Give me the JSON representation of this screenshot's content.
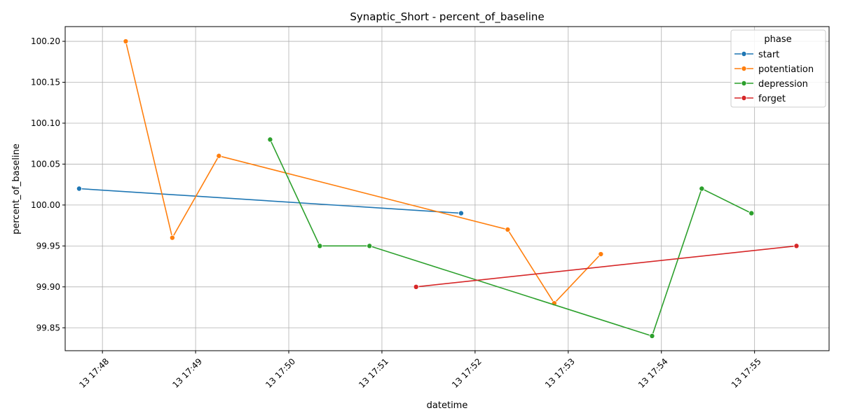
{
  "chart_data": {
    "type": "line",
    "title": "Synaptic_Short - percent_of_baseline",
    "xlabel": "datetime",
    "ylabel": "percent_of_baseline",
    "x_unit": "minute-of-day",
    "xlim": [
      "17:47.6",
      "17:55.8"
    ],
    "ylim": [
      99.822,
      100.218
    ],
    "grid": true,
    "legend_title": "phase",
    "legend_position": "top-right",
    "x_ticks": [
      {
        "label": "13 17:48",
        "t": "17:48"
      },
      {
        "label": "13 17:49",
        "t": "17:49"
      },
      {
        "label": "13 17:50",
        "t": "17:50"
      },
      {
        "label": "13 17:51",
        "t": "17:51"
      },
      {
        "label": "13 17:52",
        "t": "17:52"
      },
      {
        "label": "13 17:53",
        "t": "17:53"
      },
      {
        "label": "13 17:54",
        "t": "17:54"
      },
      {
        "label": "13 17:55",
        "t": "17:55"
      }
    ],
    "y_ticks": [
      "99.85",
      "99.90",
      "99.95",
      "100.00",
      "100.05",
      "100.10",
      "100.15",
      "100.20"
    ],
    "series": [
      {
        "name": "start",
        "color": "#1f77b4",
        "points": [
          {
            "t": "17:47:45",
            "y": 100.02
          },
          {
            "t": "17:51:51",
            "y": 99.99
          }
        ]
      },
      {
        "name": "potentiation",
        "color": "#ff7f0e",
        "points": [
          {
            "t": "17:48:15",
            "y": 100.2
          },
          {
            "t": "17:48:45",
            "y": 99.96
          },
          {
            "t": "17:49:15",
            "y": 100.06
          },
          {
            "t": "17:52:21",
            "y": 99.97
          },
          {
            "t": "17:52:51",
            "y": 99.88
          },
          {
            "t": "17:53:21",
            "y": 99.94
          }
        ]
      },
      {
        "name": "depression",
        "color": "#2ca02c",
        "points": [
          {
            "t": "17:49:48",
            "y": 100.08
          },
          {
            "t": "17:50:20",
            "y": 99.95
          },
          {
            "t": "17:50:52",
            "y": 99.95
          },
          {
            "t": "17:53:54",
            "y": 99.84
          },
          {
            "t": "17:54:26",
            "y": 100.02
          },
          {
            "t": "17:54:58",
            "y": 99.99
          }
        ]
      },
      {
        "name": "forget",
        "color": "#d62728",
        "points": [
          {
            "t": "17:51:22",
            "y": 99.9
          },
          {
            "t": "17:55:27",
            "y": 99.95
          }
        ]
      }
    ]
  }
}
